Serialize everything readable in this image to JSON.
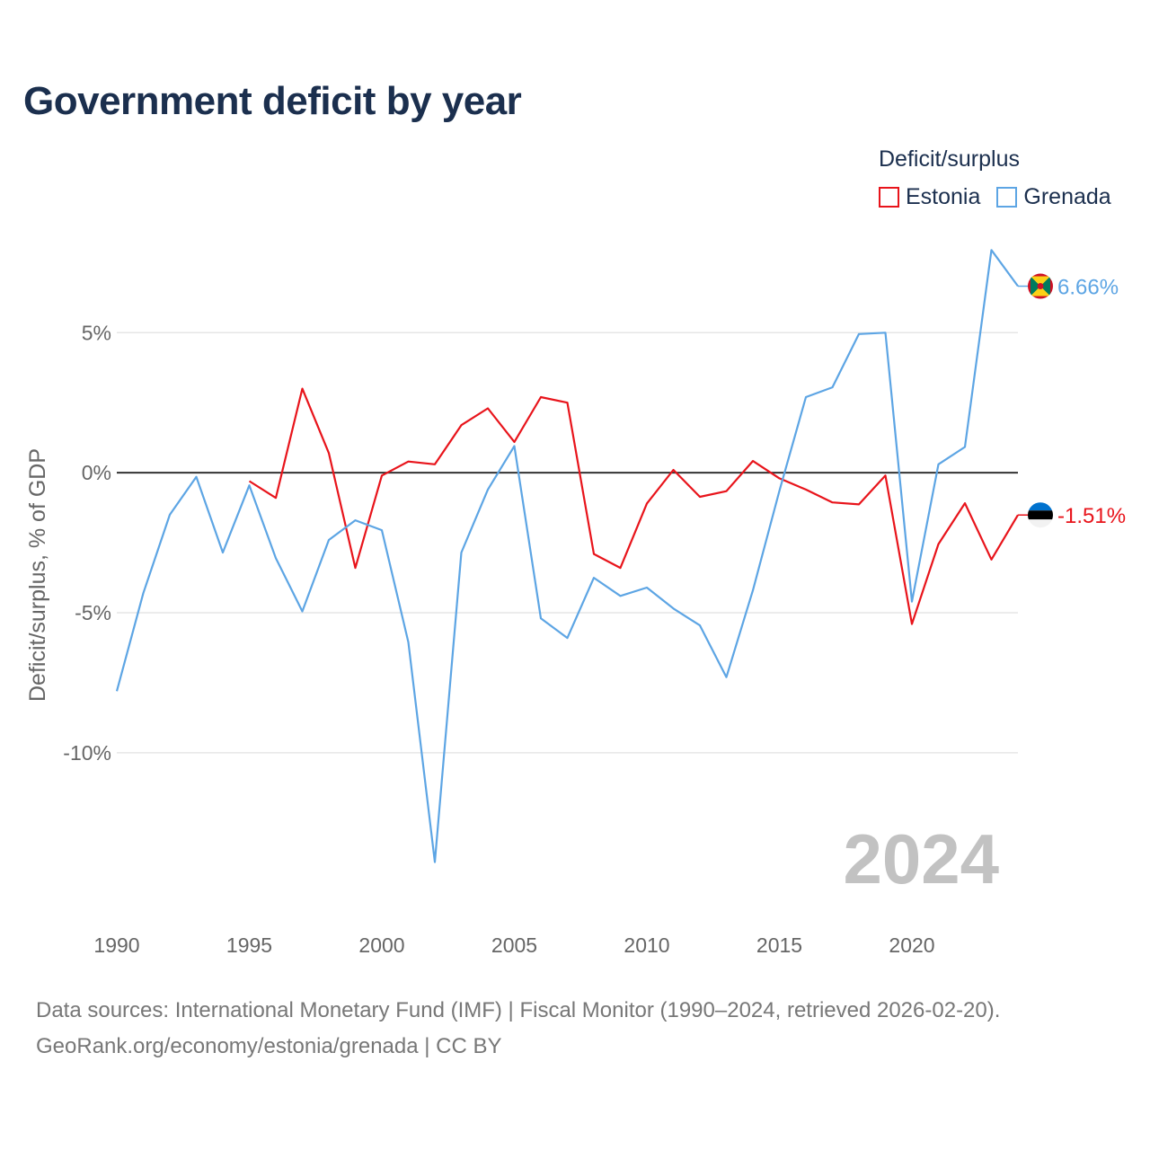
{
  "title": "Government deficit by year",
  "legend": {
    "title": "Deficit/surplus",
    "items": [
      {
        "name": "Estonia",
        "color": "#e8141b"
      },
      {
        "name": "Grenada",
        "color": "#5da5e4"
      }
    ]
  },
  "sources": {
    "line1": "Data sources: International Monetary Fund (IMF) | Fiscal Monitor (1990–2024, retrieved 2026-02-20).",
    "line2": "GeoRank.org/economy/estonia/grenada | CC BY"
  },
  "chart_data": {
    "type": "line",
    "title": "Government deficit by year",
    "xlabel": "",
    "ylabel": "Deficit/surplus, % of GDP",
    "xlim": [
      1990,
      2024
    ],
    "ylim": [
      -15.2,
      9.5
    ],
    "x_ticks": [
      1990,
      1995,
      2000,
      2005,
      2010,
      2015,
      2020
    ],
    "y_ticks": [
      5,
      0,
      -5,
      -10
    ],
    "y_tick_labels": [
      "5%",
      "0%",
      "-5%",
      "-10%"
    ],
    "zero_line": true,
    "grid": true,
    "year_label": "2024",
    "series": [
      {
        "name": "Estonia",
        "color": "#e8141b",
        "end_label": "-1.51%",
        "flag_icon": "estonia-flag-icon",
        "x": [
          1995,
          1996,
          1997,
          1998,
          1999,
          2000,
          2001,
          2002,
          2003,
          2004,
          2005,
          2006,
          2007,
          2008,
          2009,
          2010,
          2011,
          2012,
          2013,
          2014,
          2015,
          2016,
          2017,
          2018,
          2019,
          2020,
          2021,
          2022,
          2023,
          2024
        ],
        "values": [
          -0.3,
          -0.9,
          3.0,
          0.7,
          -3.4,
          -0.1,
          0.4,
          0.3,
          1.7,
          2.3,
          1.1,
          2.7,
          2.5,
          -2.9,
          -3.4,
          -1.1,
          0.1,
          -0.86,
          -0.66,
          0.42,
          -0.2,
          -0.6,
          -1.06,
          -1.13,
          -0.1,
          -5.4,
          -2.55,
          -1.09,
          -3.1,
          -1.51
        ]
      },
      {
        "name": "Grenada",
        "color": "#5da5e4",
        "end_label": "6.66%",
        "flag_icon": "grenada-flag-icon",
        "x": [
          1990,
          1991,
          1992,
          1993,
          1994,
          1995,
          1996,
          1997,
          1998,
          1999,
          2000,
          2001,
          2002,
          2003,
          2004,
          2005,
          2006,
          2007,
          2008,
          2009,
          2010,
          2011,
          2012,
          2013,
          2014,
          2015,
          2016,
          2017,
          2018,
          2019,
          2020,
          2021,
          2022,
          2023,
          2024
        ],
        "values": [
          -7.8,
          -4.3,
          -1.5,
          -0.15,
          -2.85,
          -0.45,
          -3.05,
          -4.95,
          -2.4,
          -1.7,
          -2.05,
          -6.05,
          -13.9,
          -2.85,
          -0.6,
          0.95,
          -5.2,
          -5.9,
          -3.75,
          -4.4,
          -4.1,
          -4.85,
          -5.45,
          -7.3,
          -4.2,
          -0.65,
          2.7,
          3.05,
          4.95,
          5.0,
          -4.6,
          0.3,
          0.92,
          7.95,
          6.66
        ]
      }
    ]
  }
}
